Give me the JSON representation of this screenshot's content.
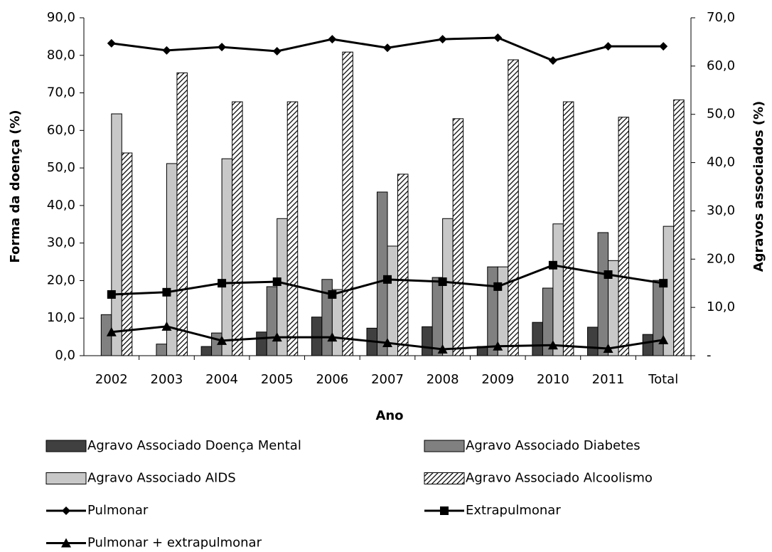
{
  "chart_data": {
    "type": "bar+line",
    "x_label": "Ano",
    "y_label": "Forma da doença (%)",
    "y2_label": "Agravos associados  (%)",
    "categories": [
      "2002",
      "2003",
      "2004",
      "2005",
      "2006",
      "2007",
      "2008",
      "2009",
      "2010",
      "2011",
      "Total"
    ],
    "ylim": [
      0,
      90
    ],
    "yticks": [
      {
        "value": 0,
        "label": "0,0"
      },
      {
        "value": 10,
        "label": "10,0"
      },
      {
        "value": 20,
        "label": "20,0"
      },
      {
        "value": 30,
        "label": "30,0"
      },
      {
        "value": 40,
        "label": "40,0"
      },
      {
        "value": 50,
        "label": "50,0"
      },
      {
        "value": 60,
        "label": "60,0"
      },
      {
        "value": 70,
        "label": "70,0"
      },
      {
        "value": 80,
        "label": "80,0"
      },
      {
        "value": 90,
        "label": "90,0"
      }
    ],
    "y2lim": [
      0,
      70
    ],
    "y2ticks": [
      {
        "value": 0,
        "label": "-"
      },
      {
        "value": 10,
        "label": "10,0"
      },
      {
        "value": 20,
        "label": "20,0"
      },
      {
        "value": 30,
        "label": "30,0"
      },
      {
        "value": 40,
        "label": "40,0"
      },
      {
        "value": 50,
        "label": "50,0"
      },
      {
        "value": 60,
        "label": "60,0"
      },
      {
        "value": 70,
        "label": "70,0"
      }
    ],
    "series": [
      {
        "name": "Agravo Associado Doença Mental",
        "type": "bar",
        "axis": "y2",
        "color": "#404040",
        "values": [
          0,
          0,
          1.9,
          4.9,
          8.0,
          5.7,
          6.0,
          1.9,
          6.9,
          5.9,
          4.4
        ]
      },
      {
        "name": "Agravo Associado Diabetes",
        "type": "bar",
        "axis": "y2",
        "color": "#808080",
        "values": [
          8.5,
          2.4,
          4.7,
          14.3,
          15.8,
          33.9,
          16.2,
          18.4,
          14.0,
          25.5,
          15.6
        ]
      },
      {
        "name": "Agravo Associado AIDS",
        "type": "bar",
        "axis": "y2",
        "color": "#c8c8c8",
        "values": [
          50.1,
          39.8,
          40.8,
          28.4,
          13.7,
          22.7,
          28.4,
          18.4,
          27.3,
          19.7,
          26.8
        ]
      },
      {
        "name": "Agravo Associado Alcoolismo",
        "type": "bar",
        "axis": "y2",
        "color": "#000000",
        "pattern": "diagonal",
        "values": [
          42.0,
          58.6,
          52.6,
          52.6,
          62.9,
          37.6,
          49.1,
          61.3,
          52.6,
          49.4,
          53.0
        ]
      },
      {
        "name": "Pulmonar",
        "type": "line",
        "color": "#000000",
        "marker": "diamond",
        "values": [
          83.2,
          81.3,
          82.2,
          81.1,
          84.3,
          82.0,
          84.3,
          84.7,
          78.6,
          82.4,
          82.4
        ]
      },
      {
        "name": "Extrapulmonar",
        "type": "line",
        "color": "#000000",
        "marker": "square",
        "values": [
          16.3,
          16.9,
          19.3,
          19.7,
          16.3,
          20.3,
          19.7,
          18.4,
          24.1,
          21.6,
          19.3
        ]
      },
      {
        "name": "Pulmonar + extrapulmonar",
        "type": "line",
        "color": "#000000",
        "marker": "triangle",
        "values": [
          6.3,
          7.8,
          4.0,
          4.9,
          4.9,
          3.4,
          1.7,
          2.5,
          2.8,
          1.9,
          4.2
        ]
      }
    ]
  }
}
